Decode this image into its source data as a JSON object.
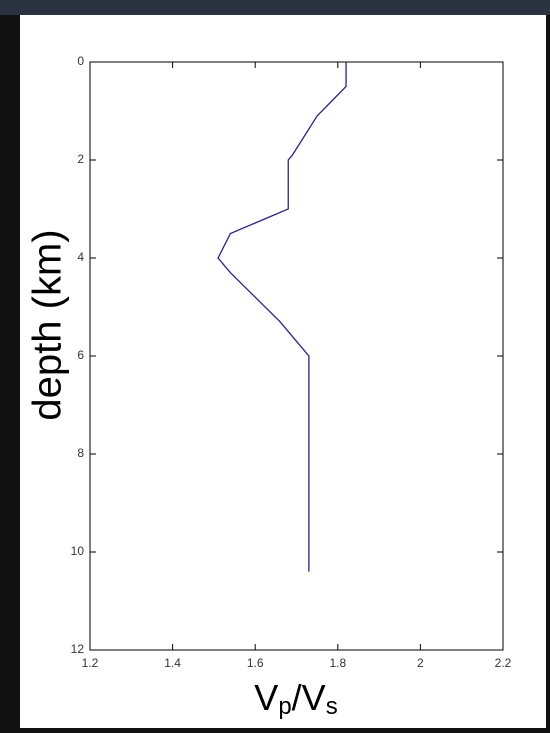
{
  "chart_data": {
    "type": "line",
    "xlabel": [
      "V",
      "p",
      "/V",
      "s"
    ],
    "ylabel": "depth (km)",
    "series": [
      {
        "color": "#23239a",
        "x": [
          1.82,
          1.82,
          1.75,
          1.69,
          1.68,
          1.68,
          1.54,
          1.51,
          1.54,
          1.6,
          1.66,
          1.7,
          1.73,
          1.73
        ],
        "y": [
          0,
          0.5,
          1.1,
          1.9,
          2.0,
          3.0,
          3.5,
          4.0,
          4.3,
          4.8,
          5.3,
          5.7,
          6.0,
          10.4
        ]
      }
    ],
    "xlim": [
      1.2,
      2.2
    ],
    "xticks": [
      1.2,
      1.4,
      1.6,
      1.8,
      2,
      2.2
    ],
    "ylim": [
      0,
      12
    ],
    "yticks": [
      0,
      2,
      4,
      6,
      8,
      10,
      12
    ],
    "y_reversed": true
  }
}
